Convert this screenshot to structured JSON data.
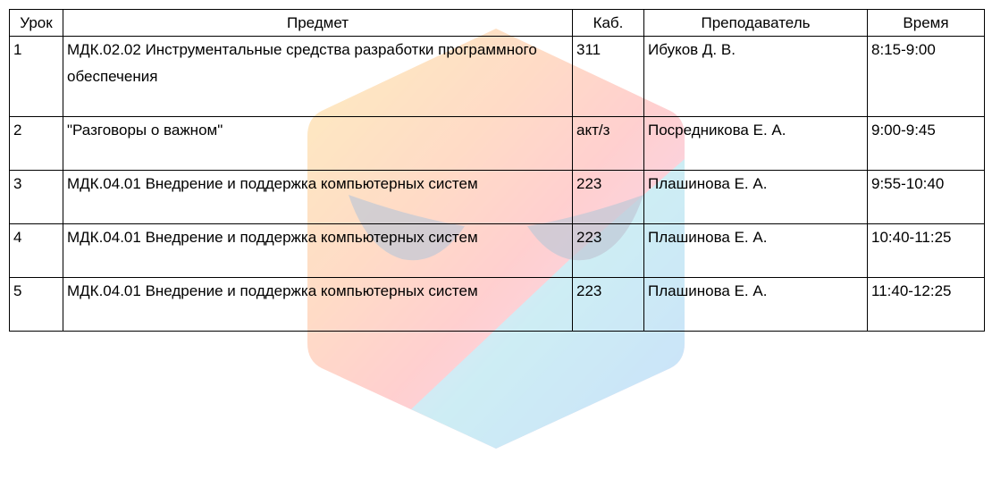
{
  "watermark": {
    "icon": "hexagon-logo-watermark",
    "colors": [
      "#fcd46a",
      "#ff8f8f",
      "#f59ac0",
      "#8ad6e6",
      "#82b9f5",
      "#d9a6e6"
    ]
  },
  "table": {
    "headers": {
      "lesson": "Урок",
      "subject": "Предмет",
      "room": "Каб.",
      "teacher": "Преподаватель",
      "time": "Время"
    },
    "rows": [
      {
        "lesson": "1",
        "subject": "МДК.02.02 Инструментальные средства разработки программного обеспечения",
        "room": "311",
        "teacher": "Ибуков Д. В.",
        "time": "8:15-9:00"
      },
      {
        "lesson": "2",
        "subject": "\"Разговоры о важном\"",
        "room": "акт/з",
        "teacher": "Посредникова Е. А.",
        "time": "9:00-9:45"
      },
      {
        "lesson": "3",
        "subject": "МДК.04.01 Внедрение и поддержка компьютерных систем",
        "room": "223",
        "teacher": "Плашинова Е. А.",
        "time": "9:55-10:40"
      },
      {
        "lesson": "4",
        "subject": "МДК.04.01 Внедрение и поддержка компьютерных систем",
        "room": "223",
        "teacher": "Плашинова Е. А.",
        "time": "10:40-11:25"
      },
      {
        "lesson": "5",
        "subject": "МДК.04.01 Внедрение и поддержка компьютерных систем",
        "room": "223",
        "teacher": "Плашинова Е. А.",
        "time": "11:40-12:25"
      }
    ]
  }
}
